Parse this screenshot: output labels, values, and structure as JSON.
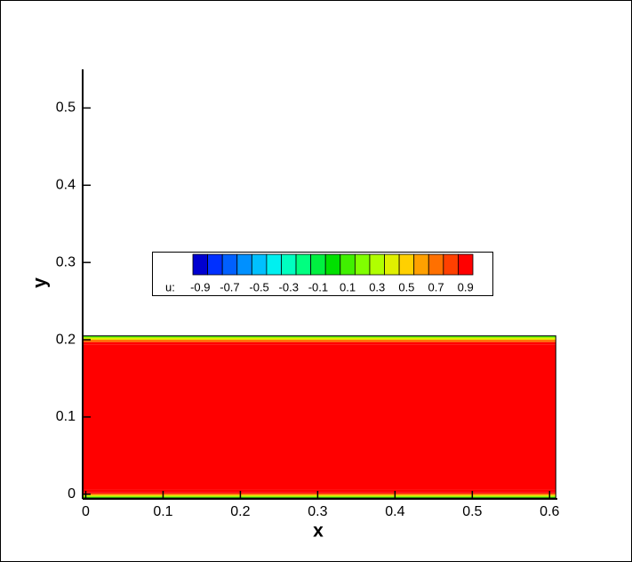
{
  "chart_data": {
    "type": "contour",
    "x_label": "x",
    "y_label": "y",
    "xlim": [
      -0.004,
      0.61
    ],
    "ylim": [
      -0.006,
      0.55
    ],
    "xticks": [
      0,
      0.1,
      0.2,
      0.3,
      0.4,
      0.5,
      0.6
    ],
    "yticks": [
      0,
      0.1,
      0.2,
      0.3,
      0.4,
      0.5
    ],
    "field_x": [
      0,
      0.608
    ],
    "profile": {
      "y": [
        -0.005,
        -0.003,
        -0.001,
        0.001,
        0.003,
        0.006,
        0.194,
        0.197,
        0.2,
        0.203,
        0.205
      ],
      "u": [
        0,
        0.2,
        0.5,
        0.8,
        0.95,
        1,
        1,
        0.8,
        0.5,
        0.2,
        0
      ]
    },
    "legend": {
      "label": "u:",
      "levels": [
        -0.95,
        -0.85,
        -0.75,
        -0.65,
        -0.55,
        -0.45,
        -0.35,
        -0.25,
        -0.15,
        -0.05,
        0.05,
        0.15,
        0.25,
        0.35,
        0.45,
        0.55,
        0.65,
        0.75,
        0.85,
        0.95
      ],
      "colors": [
        "#0000d0",
        "#0030ff",
        "#0060ff",
        "#0090ff",
        "#00c0ff",
        "#00f0f0",
        "#00ffc0",
        "#00ff80",
        "#00f040",
        "#00e000",
        "#40f000",
        "#80ff00",
        "#b0ff00",
        "#e0f000",
        "#ffd000",
        "#ffa000",
        "#ff7000",
        "#ff4000",
        "#ff0000"
      ],
      "ticks": [
        -0.9,
        -0.7,
        -0.5,
        -0.3,
        -0.1,
        0.1,
        0.3,
        0.5,
        0.7,
        0.9
      ]
    }
  }
}
